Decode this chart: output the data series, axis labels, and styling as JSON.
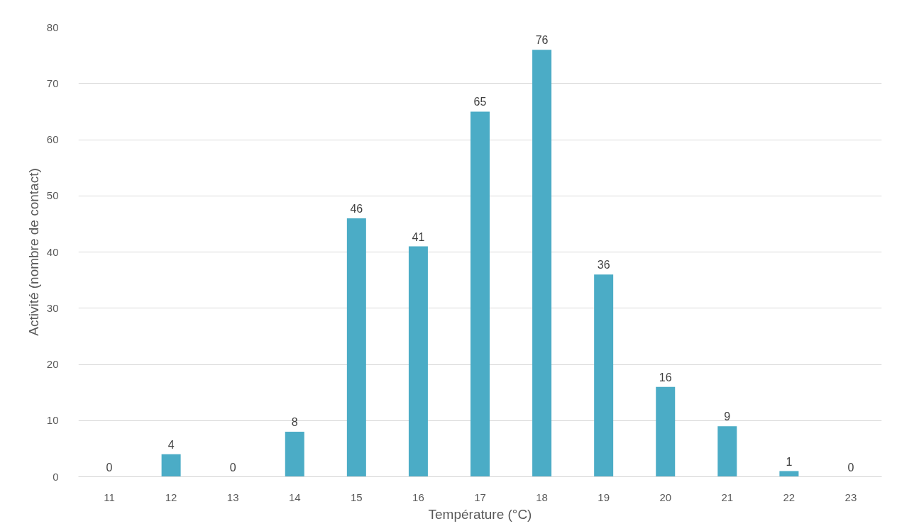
{
  "chart_data": {
    "type": "bar",
    "xlabel": "Température (°C)",
    "ylabel": "Activité (nombre de contact)",
    "categories": [
      "11",
      "12",
      "13",
      "14",
      "15",
      "16",
      "17",
      "18",
      "19",
      "20",
      "21",
      "22",
      "23"
    ],
    "values": [
      0,
      4,
      0,
      8,
      46,
      41,
      65,
      76,
      36,
      16,
      9,
      1,
      0
    ],
    "color": "#4bacc6",
    "ylim": [
      0,
      80
    ],
    "yticks": [
      0,
      10,
      20,
      30,
      40,
      50,
      60,
      70,
      80
    ],
    "grid": "y",
    "data_labels": true
  }
}
